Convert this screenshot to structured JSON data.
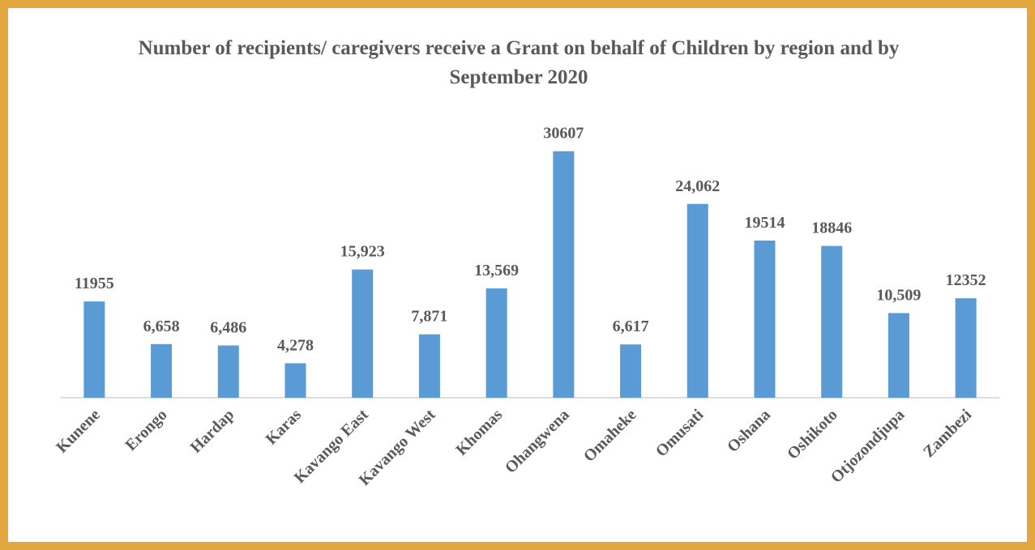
{
  "chart_data": {
    "type": "bar",
    "title": "Number of recipients/ caregivers receive a Grant on behalf of Children by region and by September 2020",
    "categories": [
      "Kunene",
      "Erongo",
      "Hardap",
      "Karas",
      "Kavango East",
      "Kavango West",
      "Khomas",
      "Ohangwena",
      "Omaheke",
      "Omusati",
      "Oshana",
      "Oshikoto",
      "Otjozondjupa",
      "Zambezi"
    ],
    "values": [
      11955,
      6658,
      6486,
      4278,
      15923,
      7871,
      13569,
      30607,
      6617,
      24062,
      19514,
      18846,
      10509,
      12352
    ],
    "value_labels": [
      "11955",
      "6,658",
      "6,486",
      "4,278",
      "15,923",
      "7,871",
      "13,569",
      "30607",
      "6,617",
      "24,062",
      "19514",
      "18846",
      "10,509",
      "12352"
    ],
    "color": "#5b9bd5",
    "ylim": [
      0,
      35000
    ]
  }
}
